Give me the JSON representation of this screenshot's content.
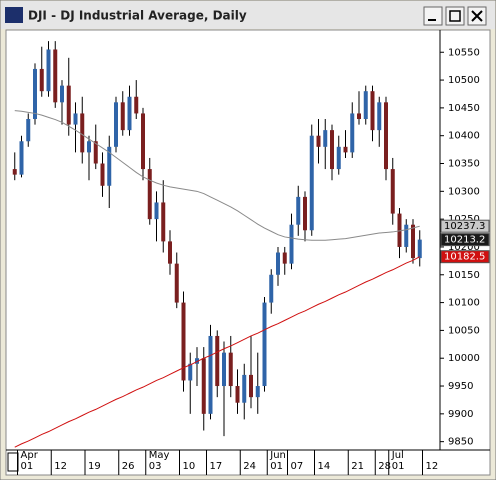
{
  "window_title": "DJI - DJ Industrial Average, Daily",
  "chart_data": {
    "type": "candlestick",
    "up_color": "#2f64a8",
    "down_color": "#7a1f1f",
    "open": [
      10340,
      10330,
      10390,
      10430,
      10520,
      10480,
      10555,
      10460,
      10490,
      10420,
      10440,
      10370,
      10390,
      10350,
      10310,
      10380,
      10460,
      10410,
      10470,
      10440,
      10340,
      10250,
      10280,
      10210,
      10170,
      10100,
      9960,
      9990,
      10000,
      9900,
      10040,
      9950,
      10010,
      9950,
      9920,
      9970,
      9930,
      9950,
      10100,
      10150,
      10190,
      10170,
      10240,
      10290,
      10230,
      10400,
      10380,
      10410,
      10340,
      10380,
      10370,
      10440,
      10430,
      10480,
      10410,
      10460,
      10340,
      10260,
      10200,
      10240,
      10180
    ],
    "high": [
      10370,
      10400,
      10440,
      10530,
      10560,
      10570,
      10570,
      10500,
      10540,
      10460,
      10470,
      10400,
      10420,
      10370,
      10400,
      10470,
      10480,
      10490,
      10500,
      10450,
      10360,
      10300,
      10320,
      10230,
      10190,
      10120,
      10010,
      10020,
      10020,
      10060,
      10050,
      10030,
      10040,
      9980,
      9990,
      10040,
      10010,
      10110,
      10160,
      10200,
      10200,
      10260,
      10310,
      10300,
      10420,
      10430,
      10430,
      10420,
      10400,
      10410,
      10460,
      10480,
      10490,
      10490,
      10470,
      10470,
      10360,
      10270,
      10250,
      10250,
      10230
    ],
    "low": [
      10320,
      10325,
      10380,
      10420,
      10470,
      10470,
      10450,
      10420,
      10400,
      10370,
      10350,
      10320,
      10340,
      10290,
      10270,
      10370,
      10400,
      10400,
      10430,
      10320,
      10240,
      10210,
      10190,
      10150,
      10090,
      9940,
      9900,
      9950,
      9870,
      9890,
      9930,
      9860,
      9930,
      9900,
      9890,
      9910,
      9900,
      9940,
      10080,
      10130,
      10150,
      10160,
      10220,
      10210,
      10220,
      10350,
      10340,
      10320,
      10330,
      10360,
      10360,
      10420,
      10420,
      10390,
      10380,
      10320,
      10240,
      10180,
      10190,
      10170,
      10165
    ],
    "close": [
      10330,
      10390,
      10430,
      10520,
      10480,
      10555,
      10460,
      10490,
      10420,
      10440,
      10370,
      10390,
      10350,
      10310,
      10380,
      10460,
      10410,
      10470,
      10440,
      10340,
      10250,
      10280,
      10210,
      10170,
      10100,
      9960,
      9990,
      10000,
      9900,
      10040,
      9950,
      10010,
      9950,
      9920,
      9970,
      9930,
      9950,
      10100,
      10150,
      10190,
      10170,
      10240,
      10290,
      10230,
      10400,
      10380,
      10410,
      10340,
      10380,
      10370,
      10440,
      10430,
      10480,
      10410,
      10460,
      10340,
      10260,
      10200,
      10240,
      10180,
      10213.2
    ],
    "moving_averages": [
      {
        "color": "#8a8a8a",
        "values": [
          10445,
          10444,
          10442,
          10440,
          10437,
          10433,
          10429,
          10424,
          10417,
          10410,
          10402,
          10394,
          10386,
          10378,
          10370,
          10361,
          10352,
          10343,
          10334,
          10326,
          10320,
          10315,
          10311,
          10308,
          10306,
          10304,
          10302,
          10300,
          10296,
          10290,
          10284,
          10278,
          10272,
          10265,
          10257,
          10249,
          10241,
          10234,
          10228,
          10222,
          10218,
          10216,
          10214,
          10213,
          10212,
          10212,
          10212,
          10213,
          10214,
          10215,
          10217,
          10219,
          10221,
          10223,
          10225,
          10226,
          10227,
          10229,
          10231,
          10234,
          10237.3
        ]
      },
      {
        "color": "#d01010",
        "values": [
          9840,
          9846,
          9851,
          9857,
          9863,
          9868,
          9874,
          9880,
          9886,
          9891,
          9897,
          9903,
          9908,
          9914,
          9920,
          9926,
          9931,
          9937,
          9943,
          9948,
          9954,
          9960,
          9965,
          9971,
          9977,
          9983,
          9988,
          9994,
          10000,
          10005,
          10011,
          10017,
          10022,
          10028,
          10034,
          10040,
          10045,
          10051,
          10057,
          10062,
          10068,
          10074,
          10080,
          10085,
          10091,
          10097,
          10102,
          10108,
          10114,
          10119,
          10125,
          10131,
          10137,
          10142,
          10148,
          10154,
          10159,
          10165,
          10171,
          10176,
          10182.5
        ]
      }
    ],
    "price_tags": [
      {
        "value": 10237.3,
        "color": "#c8c8c8",
        "text_color": "#000000"
      },
      {
        "value": 10213.2,
        "color": "#1a1a1a",
        "text_color": "#ffffff"
      },
      {
        "value": 10182.5,
        "color": "#d01010",
        "text_color": "#ffffff"
      }
    ],
    "xlim": [
      -1,
      63
    ],
    "ylim": [
      9835,
      10590
    ],
    "yticks": [
      9850,
      9900,
      9950,
      10000,
      10050,
      10100,
      10150,
      10200,
      10250,
      10300,
      10350,
      10400,
      10450,
      10500,
      10550
    ],
    "xticks": [
      {
        "value": 1,
        "label": "01"
      },
      {
        "value": 6,
        "label": "12"
      },
      {
        "value": 11,
        "label": "19"
      },
      {
        "value": 16,
        "label": "26"
      },
      {
        "value": 20,
        "label": "03"
      },
      {
        "value": 25,
        "label": "10"
      },
      {
        "value": 29,
        "label": "17"
      },
      {
        "value": 34,
        "label": "24"
      },
      {
        "value": 38,
        "label": "01"
      },
      {
        "value": 41,
        "label": "07"
      },
      {
        "value": 45,
        "label": "14"
      },
      {
        "value": 50,
        "label": "21"
      },
      {
        "value": 54,
        "label": "28"
      },
      {
        "value": 56,
        "label": "01"
      },
      {
        "value": 61,
        "label": "12"
      }
    ],
    "month_ticks": [
      {
        "value": 1,
        "label": "Apr"
      },
      {
        "value": 20,
        "label": "May"
      },
      {
        "value": 38,
        "label": "Jun"
      },
      {
        "value": 56,
        "label": "Jul"
      }
    ]
  }
}
